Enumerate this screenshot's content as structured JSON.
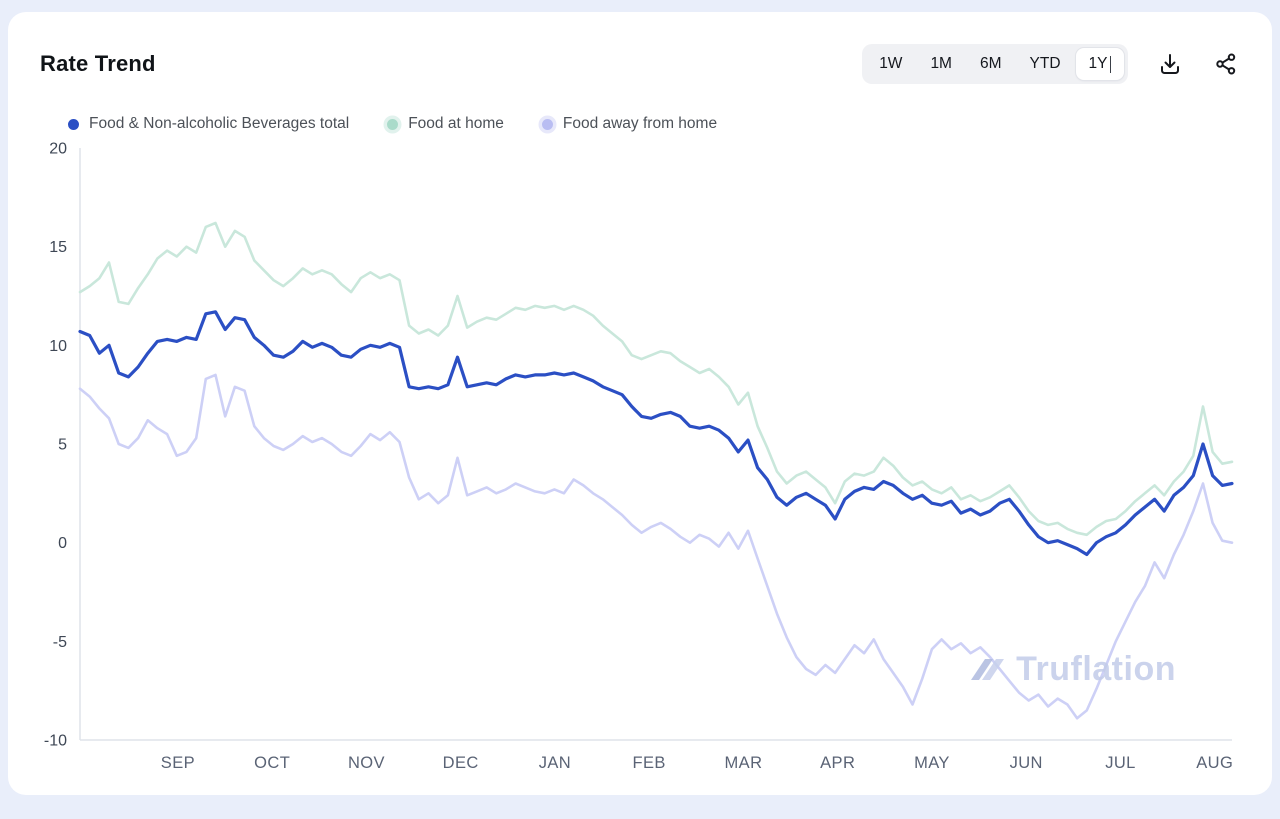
{
  "header": {
    "title": "Rate Trend"
  },
  "toolbar": {
    "ranges": [
      {
        "label": "1W",
        "selected": false
      },
      {
        "label": "1M",
        "selected": false
      },
      {
        "label": "6M",
        "selected": false
      },
      {
        "label": "YTD",
        "selected": false
      },
      {
        "label": "1Y",
        "selected": true
      }
    ],
    "icons": [
      "download-icon",
      "share-icon"
    ]
  },
  "legend": [
    {
      "label": "Food & Non-alcoholic Beverages total",
      "color": "#2b4fc4",
      "halo": "transparent"
    },
    {
      "label": "Food at home",
      "color": "#a9dbca",
      "halo": "rgba(169,219,202,0.35)"
    },
    {
      "label": "Food away from home",
      "color": "#b9bdf2",
      "halo": "rgba(185,189,242,0.35)"
    }
  ],
  "watermark": {
    "text": "Truflation"
  },
  "colors": {
    "card_background": "#ffffff",
    "page_background": "#e9eefa",
    "axis": "#dfe3ea"
  },
  "chart_data": {
    "type": "line",
    "title": "Rate Trend",
    "xlabel": "",
    "ylabel": "",
    "ylim": [
      -10,
      20
    ],
    "grid": false,
    "legend_position": "top",
    "x_axis_months": [
      "SEP",
      "OCT",
      "NOV",
      "DEC",
      "JAN",
      "FEB",
      "MAR",
      "APR",
      "MAY",
      "JUN",
      "JUL",
      "AUG"
    ],
    "y_ticks": [
      20,
      15,
      10,
      5,
      0,
      -5,
      -10
    ],
    "series": [
      {
        "name": "Food at home",
        "color": "#c9e7db",
        "width": 2.6,
        "values": [
          12.7,
          13.0,
          13.4,
          14.2,
          12.2,
          12.1,
          12.9,
          13.6,
          14.4,
          14.8,
          14.5,
          15.0,
          14.7,
          16.0,
          16.2,
          15.0,
          15.8,
          15.5,
          14.3,
          13.8,
          13.3,
          13.0,
          13.4,
          13.9,
          13.6,
          13.8,
          13.6,
          13.1,
          12.7,
          13.4,
          13.7,
          13.4,
          13.6,
          13.3,
          11.0,
          10.6,
          10.8,
          10.5,
          11.0,
          12.5,
          10.9,
          11.2,
          11.4,
          11.3,
          11.6,
          11.9,
          11.8,
          12.0,
          11.9,
          12.0,
          11.8,
          12.0,
          11.8,
          11.5,
          11.0,
          10.6,
          10.2,
          9.5,
          9.3,
          9.5,
          9.7,
          9.6,
          9.2,
          8.9,
          8.6,
          8.8,
          8.4,
          7.9,
          7.0,
          7.6,
          5.9,
          4.8,
          3.6,
          3.0,
          3.4,
          3.6,
          3.2,
          2.8,
          2.0,
          3.1,
          3.5,
          3.4,
          3.6,
          4.3,
          3.9,
          3.3,
          2.9,
          3.1,
          2.7,
          2.5,
          2.8,
          2.2,
          2.4,
          2.1,
          2.3,
          2.6,
          2.9,
          2.3,
          1.6,
          1.1,
          0.9,
          1.0,
          0.7,
          0.5,
          0.4,
          0.8,
          1.1,
          1.2,
          1.6,
          2.1,
          2.5,
          2.9,
          2.4,
          3.1,
          3.6,
          4.4,
          6.9,
          4.6,
          4.0,
          4.1
        ]
      },
      {
        "name": "Food away from home",
        "color": "#cdd0f6",
        "width": 2.6,
        "values": [
          7.8,
          7.4,
          6.8,
          6.3,
          5.0,
          4.8,
          5.3,
          6.2,
          5.8,
          5.5,
          4.4,
          4.6,
          5.3,
          8.3,
          8.5,
          6.4,
          7.9,
          7.7,
          5.9,
          5.3,
          4.9,
          4.7,
          5.0,
          5.4,
          5.1,
          5.3,
          5.0,
          4.6,
          4.4,
          4.9,
          5.5,
          5.2,
          5.6,
          5.1,
          3.3,
          2.2,
          2.5,
          2.0,
          2.4,
          4.3,
          2.4,
          2.6,
          2.8,
          2.5,
          2.7,
          3.0,
          2.8,
          2.6,
          2.5,
          2.7,
          2.5,
          3.2,
          2.9,
          2.5,
          2.2,
          1.8,
          1.4,
          0.9,
          0.5,
          0.8,
          1.0,
          0.7,
          0.3,
          0.0,
          0.4,
          0.2,
          -0.2,
          0.5,
          -0.3,
          0.6,
          -0.8,
          -2.2,
          -3.6,
          -4.8,
          -5.8,
          -6.4,
          -6.7,
          -6.2,
          -6.6,
          -5.9,
          -5.2,
          -5.6,
          -4.9,
          -5.9,
          -6.6,
          -7.3,
          -8.2,
          -6.9,
          -5.4,
          -4.9,
          -5.4,
          -5.1,
          -5.6,
          -5.3,
          -5.8,
          -6.4,
          -7.0,
          -7.6,
          -8.0,
          -7.7,
          -8.3,
          -7.9,
          -8.2,
          -8.9,
          -8.5,
          -7.4,
          -6.2,
          -5.0,
          -4.0,
          -3.0,
          -2.2,
          -1.0,
          -1.8,
          -0.6,
          0.4,
          1.6,
          3.0,
          1.0,
          0.1,
          0.0
        ]
      },
      {
        "name": "Food & Non-alcoholic Beverages total",
        "color": "#2b4fc4",
        "width": 3.2,
        "values": [
          10.7,
          10.5,
          9.6,
          10.0,
          8.6,
          8.4,
          8.9,
          9.6,
          10.2,
          10.3,
          10.2,
          10.4,
          10.3,
          11.6,
          11.7,
          10.8,
          11.4,
          11.3,
          10.4,
          10.0,
          9.5,
          9.4,
          9.7,
          10.2,
          9.9,
          10.1,
          9.9,
          9.5,
          9.4,
          9.8,
          10.0,
          9.9,
          10.1,
          9.9,
          7.9,
          7.8,
          7.9,
          7.8,
          8.0,
          9.4,
          7.9,
          8.0,
          8.1,
          8.0,
          8.3,
          8.5,
          8.4,
          8.5,
          8.5,
          8.6,
          8.5,
          8.6,
          8.4,
          8.2,
          7.9,
          7.7,
          7.5,
          6.9,
          6.4,
          6.3,
          6.5,
          6.6,
          6.4,
          5.9,
          5.8,
          5.9,
          5.7,
          5.3,
          4.6,
          5.2,
          3.8,
          3.2,
          2.3,
          1.9,
          2.3,
          2.5,
          2.2,
          1.9,
          1.2,
          2.2,
          2.6,
          2.8,
          2.7,
          3.1,
          2.9,
          2.5,
          2.2,
          2.4,
          2.0,
          1.9,
          2.1,
          1.5,
          1.7,
          1.4,
          1.6,
          2.0,
          2.2,
          1.6,
          0.9,
          0.3,
          0.0,
          0.1,
          -0.1,
          -0.3,
          -0.6,
          0.0,
          0.3,
          0.5,
          0.9,
          1.4,
          1.8,
          2.2,
          1.6,
          2.4,
          2.8,
          3.4,
          5.0,
          3.4,
          2.9,
          3.0
        ]
      }
    ]
  }
}
